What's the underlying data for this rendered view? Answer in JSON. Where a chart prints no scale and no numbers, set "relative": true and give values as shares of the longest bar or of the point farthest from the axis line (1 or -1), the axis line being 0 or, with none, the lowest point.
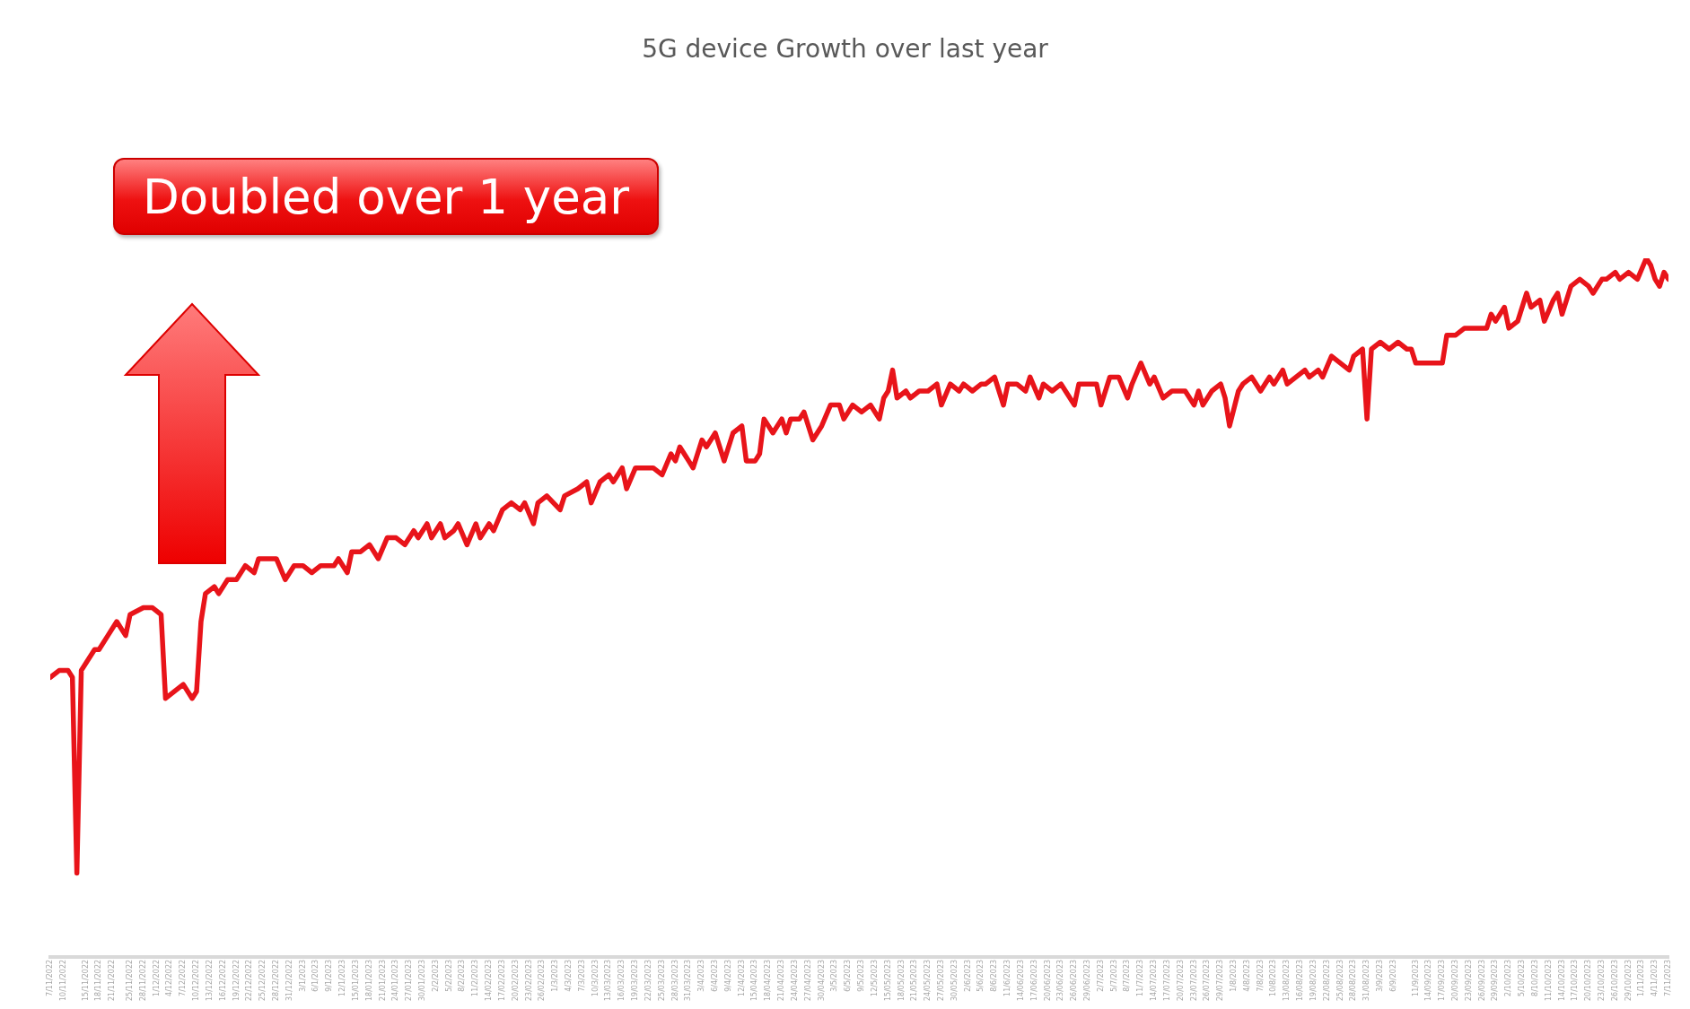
{
  "chart_data": {
    "type": "line",
    "title": "5G device Growth over last year",
    "relative": true,
    "annotations": [
      "Doubled over 1 year"
    ],
    "xlim": [
      "2022-11-07",
      "2023-11-07"
    ],
    "xticks": [
      {
        "value": "2022-11-07",
        "label": "7/11/2022"
      },
      {
        "value": "2022-11-10",
        "label": "10/11/2022"
      },
      {
        "value": "2022-11-15",
        "label": "15/11/2022"
      },
      {
        "value": "2022-11-18",
        "label": "18/11/2022"
      },
      {
        "value": "2022-11-21",
        "label": "21/11/2022"
      },
      {
        "value": "2022-11-25",
        "label": "25/11/2022"
      },
      {
        "value": "2022-11-28",
        "label": "28/11/2022"
      },
      {
        "value": "2022-12-01",
        "label": "1/12/2022"
      },
      {
        "value": "2022-12-04",
        "label": "4/12/2022"
      },
      {
        "value": "2022-12-07",
        "label": "7/12/2022"
      },
      {
        "value": "2022-12-10",
        "label": "10/12/2022"
      },
      {
        "value": "2022-12-13",
        "label": "13/12/2022"
      },
      {
        "value": "2022-12-16",
        "label": "16/12/2022"
      },
      {
        "value": "2022-12-19",
        "label": "19/12/2022"
      },
      {
        "value": "2022-12-22",
        "label": "22/12/2022"
      },
      {
        "value": "2022-12-25",
        "label": "25/12/2022"
      },
      {
        "value": "2022-12-28",
        "label": "28/12/2022"
      },
      {
        "value": "2022-12-31",
        "label": "31/12/2022"
      },
      {
        "value": "2023-01-03",
        "label": "3/1/2023"
      },
      {
        "value": "2023-01-06",
        "label": "6/1/2023"
      },
      {
        "value": "2023-01-09",
        "label": "9/1/2023"
      },
      {
        "value": "2023-01-12",
        "label": "12/1/2023"
      },
      {
        "value": "2023-01-15",
        "label": "15/01/2023"
      },
      {
        "value": "2023-01-18",
        "label": "18/01/2023"
      },
      {
        "value": "2023-01-21",
        "label": "21/01/2023"
      },
      {
        "value": "2023-01-24",
        "label": "24/01/2023"
      },
      {
        "value": "2023-01-27",
        "label": "27/01/2023"
      },
      {
        "value": "2023-01-30",
        "label": "30/01/2023"
      },
      {
        "value": "2023-02-02",
        "label": "2/2/2023"
      },
      {
        "value": "2023-02-05",
        "label": "5/2/2023"
      },
      {
        "value": "2023-02-08",
        "label": "8/2/2023"
      },
      {
        "value": "2023-02-11",
        "label": "11/2/2023"
      },
      {
        "value": "2023-02-14",
        "label": "14/02/2023"
      },
      {
        "value": "2023-02-17",
        "label": "17/02/2023"
      },
      {
        "value": "2023-02-20",
        "label": "20/02/2023"
      },
      {
        "value": "2023-02-23",
        "label": "23/02/2023"
      },
      {
        "value": "2023-02-26",
        "label": "26/02/2023"
      },
      {
        "value": "2023-03-01",
        "label": "1/3/2023"
      },
      {
        "value": "2023-03-04",
        "label": "4/3/2023"
      },
      {
        "value": "2023-03-07",
        "label": "7/3/2023"
      },
      {
        "value": "2023-03-10",
        "label": "10/3/2023"
      },
      {
        "value": "2023-03-13",
        "label": "13/03/2023"
      },
      {
        "value": "2023-03-16",
        "label": "16/03/2023"
      },
      {
        "value": "2023-03-19",
        "label": "19/03/2023"
      },
      {
        "value": "2023-03-22",
        "label": "22/03/2023"
      },
      {
        "value": "2023-03-25",
        "label": "25/03/2023"
      },
      {
        "value": "2023-03-28",
        "label": "28/03/2023"
      },
      {
        "value": "2023-03-31",
        "label": "31/03/2023"
      },
      {
        "value": "2023-04-03",
        "label": "3/4/2023"
      },
      {
        "value": "2023-04-06",
        "label": "6/4/2023"
      },
      {
        "value": "2023-04-09",
        "label": "9/4/2023"
      },
      {
        "value": "2023-04-12",
        "label": "12/4/2023"
      },
      {
        "value": "2023-04-15",
        "label": "15/04/2023"
      },
      {
        "value": "2023-04-18",
        "label": "18/04/2023"
      },
      {
        "value": "2023-04-21",
        "label": "21/04/2023"
      },
      {
        "value": "2023-04-24",
        "label": "24/04/2023"
      },
      {
        "value": "2023-04-27",
        "label": "27/04/2023"
      },
      {
        "value": "2023-04-30",
        "label": "30/04/2023"
      },
      {
        "value": "2023-05-03",
        "label": "3/5/2023"
      },
      {
        "value": "2023-05-06",
        "label": "6/5/2023"
      },
      {
        "value": "2023-05-09",
        "label": "9/5/2023"
      },
      {
        "value": "2023-05-12",
        "label": "12/5/2023"
      },
      {
        "value": "2023-05-15",
        "label": "15/05/2023"
      },
      {
        "value": "2023-05-18",
        "label": "18/05/2023"
      },
      {
        "value": "2023-05-21",
        "label": "21/05/2023"
      },
      {
        "value": "2023-05-24",
        "label": "24/05/2023"
      },
      {
        "value": "2023-05-27",
        "label": "27/05/2023"
      },
      {
        "value": "2023-05-30",
        "label": "30/05/2023"
      },
      {
        "value": "2023-06-02",
        "label": "2/6/2023"
      },
      {
        "value": "2023-06-05",
        "label": "5/6/2023"
      },
      {
        "value": "2023-06-08",
        "label": "8/6/2023"
      },
      {
        "value": "2023-06-11",
        "label": "11/6/2023"
      },
      {
        "value": "2023-06-14",
        "label": "14/06/2023"
      },
      {
        "value": "2023-06-17",
        "label": "17/06/2023"
      },
      {
        "value": "2023-06-20",
        "label": "20/06/2023"
      },
      {
        "value": "2023-06-23",
        "label": "23/06/2023"
      },
      {
        "value": "2023-06-26",
        "label": "26/06/2023"
      },
      {
        "value": "2023-06-29",
        "label": "29/06/2023"
      },
      {
        "value": "2023-07-02",
        "label": "2/7/2023"
      },
      {
        "value": "2023-07-05",
        "label": "5/7/2023"
      },
      {
        "value": "2023-07-08",
        "label": "8/7/2023"
      },
      {
        "value": "2023-07-11",
        "label": "11/7/2023"
      },
      {
        "value": "2023-07-14",
        "label": "14/07/2023"
      },
      {
        "value": "2023-07-17",
        "label": "17/07/2023"
      },
      {
        "value": "2023-07-20",
        "label": "20/07/2023"
      },
      {
        "value": "2023-07-23",
        "label": "23/07/2023"
      },
      {
        "value": "2023-07-26",
        "label": "26/07/2023"
      },
      {
        "value": "2023-07-29",
        "label": "29/07/2023"
      },
      {
        "value": "2023-08-01",
        "label": "1/8/2023"
      },
      {
        "value": "2023-08-04",
        "label": "4/8/2023"
      },
      {
        "value": "2023-08-07",
        "label": "7/8/2023"
      },
      {
        "value": "2023-08-10",
        "label": "10/8/2023"
      },
      {
        "value": "2023-08-13",
        "label": "13/08/2023"
      },
      {
        "value": "2023-08-16",
        "label": "16/08/2023"
      },
      {
        "value": "2023-08-19",
        "label": "19/08/2023"
      },
      {
        "value": "2023-08-22",
        "label": "22/08/2023"
      },
      {
        "value": "2023-08-25",
        "label": "25/08/2023"
      },
      {
        "value": "2023-08-28",
        "label": "28/08/2023"
      },
      {
        "value": "2023-08-31",
        "label": "31/08/2023"
      },
      {
        "value": "2023-09-03",
        "label": "3/9/2023"
      },
      {
        "value": "2023-09-06",
        "label": "6/9/2023"
      },
      {
        "value": "2023-09-11",
        "label": "11/9/2023"
      },
      {
        "value": "2023-09-14",
        "label": "14/09/2023"
      },
      {
        "value": "2023-09-17",
        "label": "17/09/2023"
      },
      {
        "value": "2023-09-20",
        "label": "20/09/2023"
      },
      {
        "value": "2023-09-23",
        "label": "23/09/2023"
      },
      {
        "value": "2023-09-26",
        "label": "26/09/2023"
      },
      {
        "value": "2023-09-29",
        "label": "29/09/2023"
      },
      {
        "value": "2023-10-02",
        "label": "2/10/2023"
      },
      {
        "value": "2023-10-05",
        "label": "5/10/2023"
      },
      {
        "value": "2023-10-08",
        "label": "8/10/2023"
      },
      {
        "value": "2023-10-11",
        "label": "11/10/2023"
      },
      {
        "value": "2023-10-14",
        "label": "14/10/2023"
      },
      {
        "value": "2023-10-17",
        "label": "17/10/2023"
      },
      {
        "value": "2023-10-20",
        "label": "20/10/2023"
      },
      {
        "value": "2023-10-23",
        "label": "23/10/2023"
      },
      {
        "value": "2023-10-26",
        "label": "26/10/2023"
      },
      {
        "value": "2023-10-29",
        "label": "29/10/2023"
      },
      {
        "value": "2023-11-01",
        "label": "1/11/2023"
      },
      {
        "value": "2023-11-04",
        "label": "4/11/2023"
      },
      {
        "value": "2023-11-07",
        "label": "7/11/2023"
      }
    ],
    "x": [
      "2022-11-07",
      "2022-11-09",
      "2022-11-11",
      "2022-11-12",
      "2022-11-13",
      "2022-11-14",
      "2022-11-15",
      "2022-11-17",
      "2022-11-18",
      "2022-11-20",
      "2022-11-22",
      "2022-11-24",
      "2022-11-25",
      "2022-11-28",
      "2022-11-30",
      "2022-12-02",
      "2022-12-03",
      "2022-12-05",
      "2022-12-07",
      "2022-12-09",
      "2022-12-10",
      "2022-12-11",
      "2022-12-12",
      "2022-12-14",
      "2022-12-15",
      "2022-12-17",
      "2022-12-19",
      "2022-12-21",
      "2022-12-23",
      "2022-12-24",
      "2022-12-26",
      "2022-12-28",
      "2022-12-30",
      "2023-01-01",
      "2023-01-03",
      "2023-01-05",
      "2023-01-07",
      "2023-01-10",
      "2023-01-11",
      "2023-01-13",
      "2023-01-14",
      "2023-01-16",
      "2023-01-18",
      "2023-01-20",
      "2023-01-22",
      "2023-01-24",
      "2023-01-26",
      "2023-01-28",
      "2023-01-29",
      "2023-01-31",
      "2023-02-01",
      "2023-02-03",
      "2023-02-04",
      "2023-02-06",
      "2023-02-07",
      "2023-02-09",
      "2023-02-11",
      "2023-02-12",
      "2023-02-14",
      "2023-02-15",
      "2023-02-17",
      "2023-02-19",
      "2023-02-21",
      "2023-02-22",
      "2023-02-24",
      "2023-02-25",
      "2023-02-27",
      "2023-03-02",
      "2023-03-03",
      "2023-03-06",
      "2023-03-08",
      "2023-03-09",
      "2023-03-11",
      "2023-03-13",
      "2023-03-14",
      "2023-03-16",
      "2023-03-17",
      "2023-03-19",
      "2023-03-21",
      "2023-03-23",
      "2023-03-25",
      "2023-03-27",
      "2023-03-28",
      "2023-03-29",
      "2023-03-31",
      "2023-04-01",
      "2023-04-03",
      "2023-04-04",
      "2023-04-06",
      "2023-04-08",
      "2023-04-10",
      "2023-04-12",
      "2023-04-13",
      "2023-04-15",
      "2023-04-16",
      "2023-04-17",
      "2023-04-19",
      "2023-04-21",
      "2023-04-22",
      "2023-04-23",
      "2023-04-25",
      "2023-04-26",
      "2023-04-28",
      "2023-04-30",
      "2023-05-02",
      "2023-05-04",
      "2023-05-05",
      "2023-05-07",
      "2023-05-09",
      "2023-05-11",
      "2023-05-13",
      "2023-05-14",
      "2023-05-15",
      "2023-05-16",
      "2023-05-17",
      "2023-05-19",
      "2023-05-20",
      "2023-05-22",
      "2023-05-24",
      "2023-05-26",
      "2023-05-27",
      "2023-05-29",
      "2023-05-31",
      "2023-06-01",
      "2023-06-03",
      "2023-06-05",
      "2023-06-06",
      "2023-06-08",
      "2023-06-10",
      "2023-06-11",
      "2023-06-13",
      "2023-06-15",
      "2023-06-16",
      "2023-06-18",
      "2023-06-19",
      "2023-06-21",
      "2023-06-23",
      "2023-06-24",
      "2023-06-26",
      "2023-06-27",
      "2023-06-29",
      "2023-07-01",
      "2023-07-02",
      "2023-07-04",
      "2023-07-06",
      "2023-07-08",
      "2023-07-09",
      "2023-07-11",
      "2023-07-13",
      "2023-07-14",
      "2023-07-16",
      "2023-07-18",
      "2023-07-19",
      "2023-07-21",
      "2023-07-23",
      "2023-07-24",
      "2023-07-25",
      "2023-07-27",
      "2023-07-29",
      "2023-07-30",
      "2023-07-31",
      "2023-08-02",
      "2023-08-03",
      "2023-08-05",
      "2023-08-07",
      "2023-08-09",
      "2023-08-10",
      "2023-08-12",
      "2023-08-13",
      "2023-08-15",
      "2023-08-17",
      "2023-08-18",
      "2023-08-20",
      "2023-08-21",
      "2023-08-23",
      "2023-08-25",
      "2023-08-27",
      "2023-08-28",
      "2023-08-30",
      "2023-08-31",
      "2023-09-01",
      "2023-09-03",
      "2023-09-05",
      "2023-09-07",
      "2023-09-09",
      "2023-09-10",
      "2023-09-11",
      "2023-09-17",
      "2023-09-18",
      "2023-09-20",
      "2023-09-22",
      "2023-09-24",
      "2023-09-25",
      "2023-09-27",
      "2023-09-28",
      "2023-09-29",
      "2023-10-01",
      "2023-10-02",
      "2023-10-04",
      "2023-10-06",
      "2023-10-07",
      "2023-10-09",
      "2023-10-10",
      "2023-10-12",
      "2023-10-13",
      "2023-10-14",
      "2023-10-16",
      "2023-10-18",
      "2023-10-20",
      "2023-10-21",
      "2023-10-23",
      "2023-10-24",
      "2023-10-26",
      "2023-10-27",
      "2023-10-29",
      "2023-10-31",
      "2023-11-02",
      "2023-11-03",
      "2023-11-04",
      "2023-11-05",
      "2023-11-06",
      "2023-11-07"
    ],
    "series": [
      {
        "color": "#e8141a",
        "values": [
          0.4,
          0.41,
          0.41,
          0.4,
          0.12,
          0.41,
          0.42,
          0.44,
          0.44,
          0.46,
          0.48,
          0.46,
          0.49,
          0.5,
          0.5,
          0.49,
          0.37,
          0.38,
          0.39,
          0.37,
          0.38,
          0.48,
          0.52,
          0.53,
          0.52,
          0.54,
          0.54,
          0.56,
          0.55,
          0.57,
          0.57,
          0.57,
          0.54,
          0.56,
          0.56,
          0.55,
          0.56,
          0.56,
          0.57,
          0.55,
          0.58,
          0.58,
          0.59,
          0.57,
          0.6,
          0.6,
          0.59,
          0.61,
          0.6,
          0.62,
          0.6,
          0.62,
          0.6,
          0.61,
          0.62,
          0.59,
          0.62,
          0.6,
          0.62,
          0.61,
          0.64,
          0.65,
          0.64,
          0.65,
          0.62,
          0.65,
          0.66,
          0.64,
          0.66,
          0.67,
          0.68,
          0.65,
          0.68,
          0.69,
          0.68,
          0.7,
          0.67,
          0.7,
          0.7,
          0.7,
          0.69,
          0.72,
          0.71,
          0.73,
          0.71,
          0.7,
          0.74,
          0.73,
          0.75,
          0.71,
          0.75,
          0.76,
          0.71,
          0.71,
          0.72,
          0.77,
          0.75,
          0.77,
          0.75,
          0.77,
          0.77,
          0.78,
          0.74,
          0.76,
          0.79,
          0.79,
          0.77,
          0.79,
          0.78,
          0.79,
          0.77,
          0.8,
          0.81,
          0.84,
          0.8,
          0.81,
          0.8,
          0.81,
          0.81,
          0.82,
          0.79,
          0.82,
          0.81,
          0.82,
          0.81,
          0.82,
          0.82,
          0.83,
          0.79,
          0.82,
          0.82,
          0.81,
          0.83,
          0.8,
          0.82,
          0.81,
          0.82,
          0.81,
          0.79,
          0.82,
          0.82,
          0.82,
          0.79,
          0.83,
          0.83,
          0.8,
          0.82,
          0.85,
          0.82,
          0.83,
          0.8,
          0.81,
          0.81,
          0.81,
          0.79,
          0.81,
          0.79,
          0.81,
          0.82,
          0.8,
          0.76,
          0.81,
          0.82,
          0.83,
          0.81,
          0.83,
          0.82,
          0.84,
          0.82,
          0.83,
          0.84,
          0.83,
          0.84,
          0.83,
          0.86,
          0.85,
          0.84,
          0.86,
          0.87,
          0.77,
          0.87,
          0.88,
          0.87,
          0.88,
          0.87,
          0.87,
          0.85,
          0.85,
          0.89,
          0.89,
          0.9,
          0.9,
          0.9,
          0.9,
          0.92,
          0.91,
          0.93,
          0.9,
          0.91,
          0.95,
          0.93,
          0.94,
          0.91,
          0.94,
          0.95,
          0.92,
          0.96,
          0.97,
          0.96,
          0.95,
          0.97,
          0.97,
          0.98,
          0.97,
          0.98,
          0.97,
          1.0,
          0.99,
          0.97,
          0.96,
          0.98,
          0.97
        ]
      }
    ]
  }
}
